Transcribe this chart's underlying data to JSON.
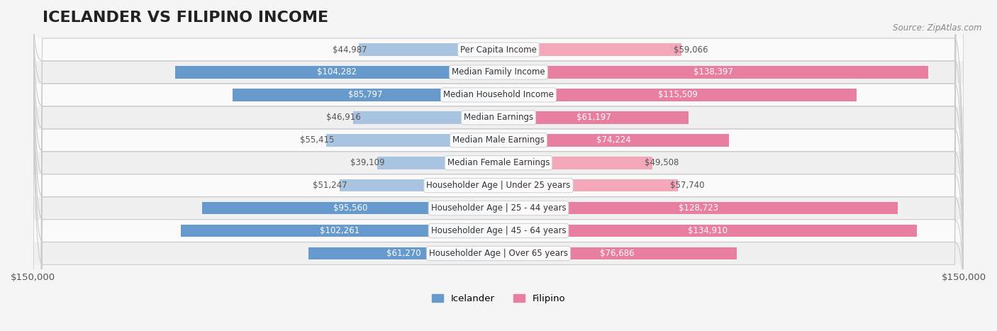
{
  "title": "ICELANDER VS FILIPINO INCOME",
  "source": "Source: ZipAtlas.com",
  "categories": [
    "Per Capita Income",
    "Median Family Income",
    "Median Household Income",
    "Median Earnings",
    "Median Male Earnings",
    "Median Female Earnings",
    "Householder Age | Under 25 years",
    "Householder Age | 25 - 44 years",
    "Householder Age | 45 - 64 years",
    "Householder Age | Over 65 years"
  ],
  "icelander": [
    44987,
    104282,
    85797,
    46916,
    55415,
    39109,
    51247,
    95560,
    102261,
    61270
  ],
  "filipino": [
    59066,
    138397,
    115509,
    61197,
    74224,
    49508,
    57740,
    128723,
    134910,
    76686
  ],
  "icelander_color": "#a8c4e0",
  "filipino_color": "#f4a7b9",
  "icelander_color_dark": "#6699cc",
  "filipino_color_dark": "#e87fa0",
  "bar_height": 0.55,
  "max_val": 150000,
  "bg_color": "#f5f5f5",
  "row_bg_light": "#ffffff",
  "row_bg_dark": "#ebebeb",
  "legend_icelander": "Icelander",
  "legend_filipino": "Filipino",
  "title_fontsize": 16,
  "tick_fontsize": 9.5,
  "label_fontsize": 8.5,
  "value_fontsize": 8.5
}
